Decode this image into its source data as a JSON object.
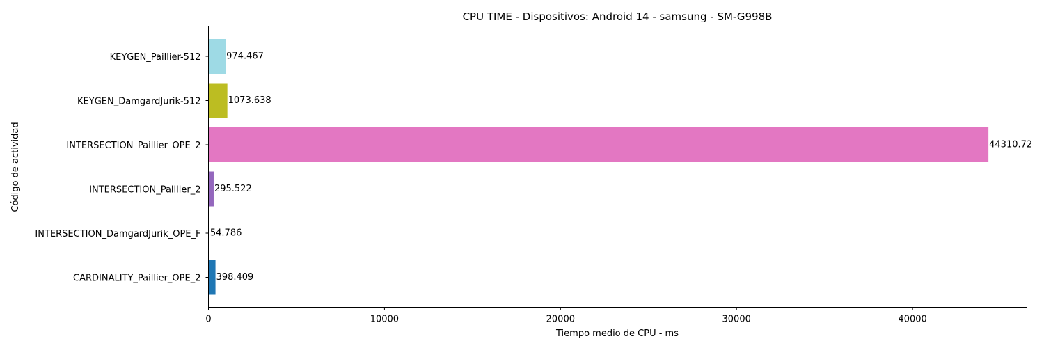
{
  "chart_data": {
    "type": "bar",
    "orientation": "horizontal",
    "title": "CPU TIME - Dispositivos: Android 14 - samsung - SM-G998B",
    "xlabel": "Tiempo medio de CPU - ms",
    "ylabel": "Código de actividad",
    "xlim": [
      0,
      46500
    ],
    "x_ticks": [
      0,
      10000,
      20000,
      30000,
      40000
    ],
    "x_tick_labels": [
      "0",
      "10000",
      "20000",
      "30000",
      "40000"
    ],
    "grid": false,
    "categories": [
      "KEYGEN_Paillier-512",
      "KEYGEN_DamgardJurik-512",
      "INTERSECTION_Paillier_OPE_2",
      "INTERSECTION_Paillier_2",
      "INTERSECTION_DamgardJurik_OPE_F",
      "CARDINALITY_Paillier_OPE_2"
    ],
    "values": [
      974.467,
      1073.638,
      44310.72,
      295.522,
      54.786,
      398.409
    ],
    "value_labels": [
      "974.467",
      "1073.638",
      "44310.72",
      "295.522",
      "54.786",
      "398.409"
    ],
    "colors": [
      "#9edae5",
      "#bcbd22",
      "#e377c2",
      "#9467bd",
      "#2ca02c",
      "#1f77b4"
    ]
  }
}
